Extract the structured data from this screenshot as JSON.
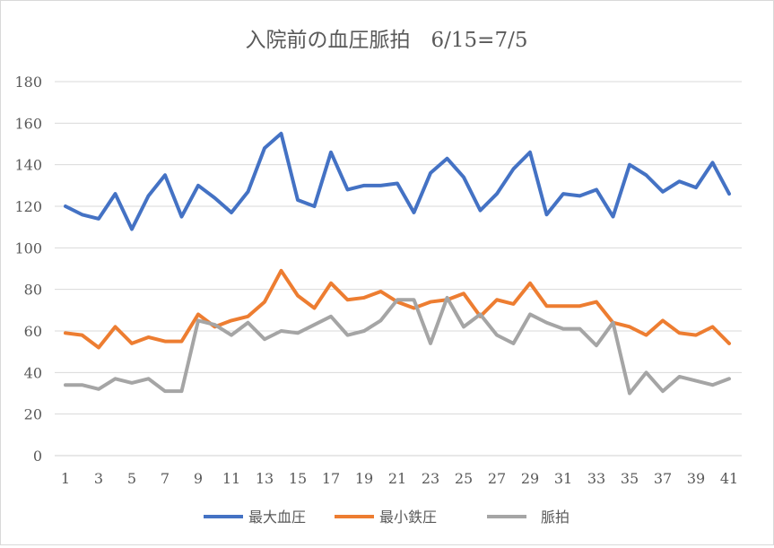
{
  "chart_data": {
    "type": "line",
    "title": "入院前の血圧脈拍　6/15=7/5",
    "xlabel": "",
    "ylabel": "",
    "ylim": [
      0,
      180
    ],
    "yticks": [
      0,
      20,
      40,
      60,
      80,
      100,
      120,
      140,
      160,
      180
    ],
    "x": [
      1,
      2,
      3,
      4,
      5,
      6,
      7,
      8,
      9,
      10,
      11,
      12,
      13,
      14,
      15,
      16,
      17,
      18,
      19,
      20,
      21,
      22,
      23,
      24,
      25,
      26,
      27,
      28,
      29,
      30,
      31,
      32,
      33,
      34,
      35,
      36,
      37,
      38,
      39,
      40,
      41
    ],
    "xtick_labels": [
      "1",
      "3",
      "5",
      "7",
      "9",
      "11",
      "13",
      "15",
      "17",
      "19",
      "21",
      "23",
      "25",
      "27",
      "29",
      "31",
      "33",
      "35",
      "37",
      "39",
      "41"
    ],
    "grid": true,
    "legend_position": "bottom",
    "series": [
      {
        "name": "最大血圧",
        "color": "#4472C4",
        "values": [
          120,
          116,
          114,
          126,
          109,
          125,
          135,
          115,
          130,
          124,
          117,
          127,
          148,
          155,
          123,
          120,
          146,
          128,
          130,
          130,
          131,
          117,
          136,
          143,
          134,
          118,
          126,
          138,
          146,
          116,
          126,
          125,
          128,
          115,
          140,
          135,
          127,
          132,
          129,
          141,
          126
        ]
      },
      {
        "name": "最小鉄圧",
        "color": "#ED7D31",
        "values": [
          59,
          58,
          52,
          62,
          54,
          57,
          55,
          55,
          68,
          62,
          65,
          67,
          74,
          89,
          77,
          71,
          83,
          75,
          76,
          79,
          74,
          71,
          74,
          75,
          78,
          67,
          75,
          73,
          83,
          72,
          72,
          72,
          74,
          64,
          62,
          58,
          65,
          59,
          58,
          62,
          54
        ]
      },
      {
        "name": "脈拍",
        "color": "#A5A5A5",
        "values": [
          34,
          34,
          32,
          37,
          35,
          37,
          31,
          31,
          65,
          63,
          58,
          64,
          56,
          60,
          59,
          63,
          67,
          58,
          60,
          65,
          75,
          75,
          54,
          76,
          62,
          68,
          58,
          54,
          68,
          64,
          61,
          61,
          53,
          64,
          30,
          40,
          31,
          38,
          36,
          34,
          37
        ]
      }
    ]
  }
}
